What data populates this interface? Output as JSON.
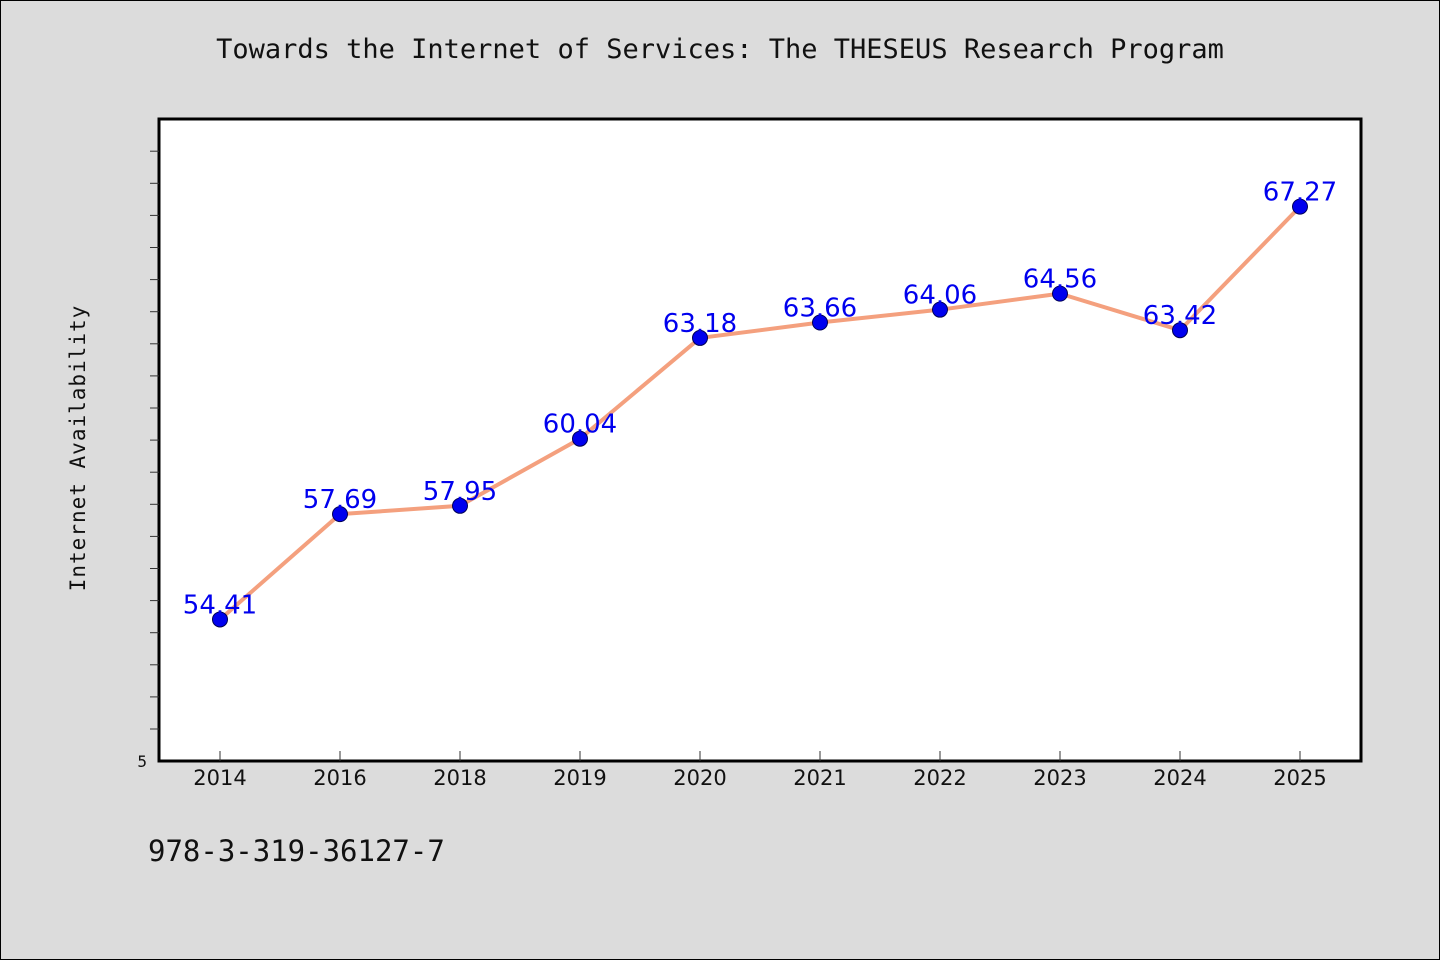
{
  "chart_data": {
    "type": "line",
    "title": "Towards the Internet of Services: The THESEUS Research Program",
    "xlabel": "",
    "ylabel": "Internet Availability",
    "categories": [
      "2014",
      "2016",
      "2018",
      "2019",
      "2020",
      "2021",
      "2022",
      "2023",
      "2024",
      "2025"
    ],
    "series": [
      {
        "values": [
          54.41,
          57.69,
          57.95,
          60.04,
          63.18,
          63.66,
          64.06,
          64.56,
          63.42,
          67.27
        ],
        "data_labels": [
          "54.41",
          "57.69",
          "57.95",
          "60.04",
          "63.18",
          "63.66",
          "64.06",
          "64.56",
          "63.42",
          "67.27"
        ]
      }
    ],
    "y_tick_labels": [
      "5"
    ],
    "ylim": [
      50,
      70
    ],
    "grid": false,
    "colors": {
      "line": "#f4a07e",
      "marker": "#0000ee",
      "label": "#0000ee"
    }
  },
  "footer": {
    "isbn": "978-3-319-36127-7"
  }
}
